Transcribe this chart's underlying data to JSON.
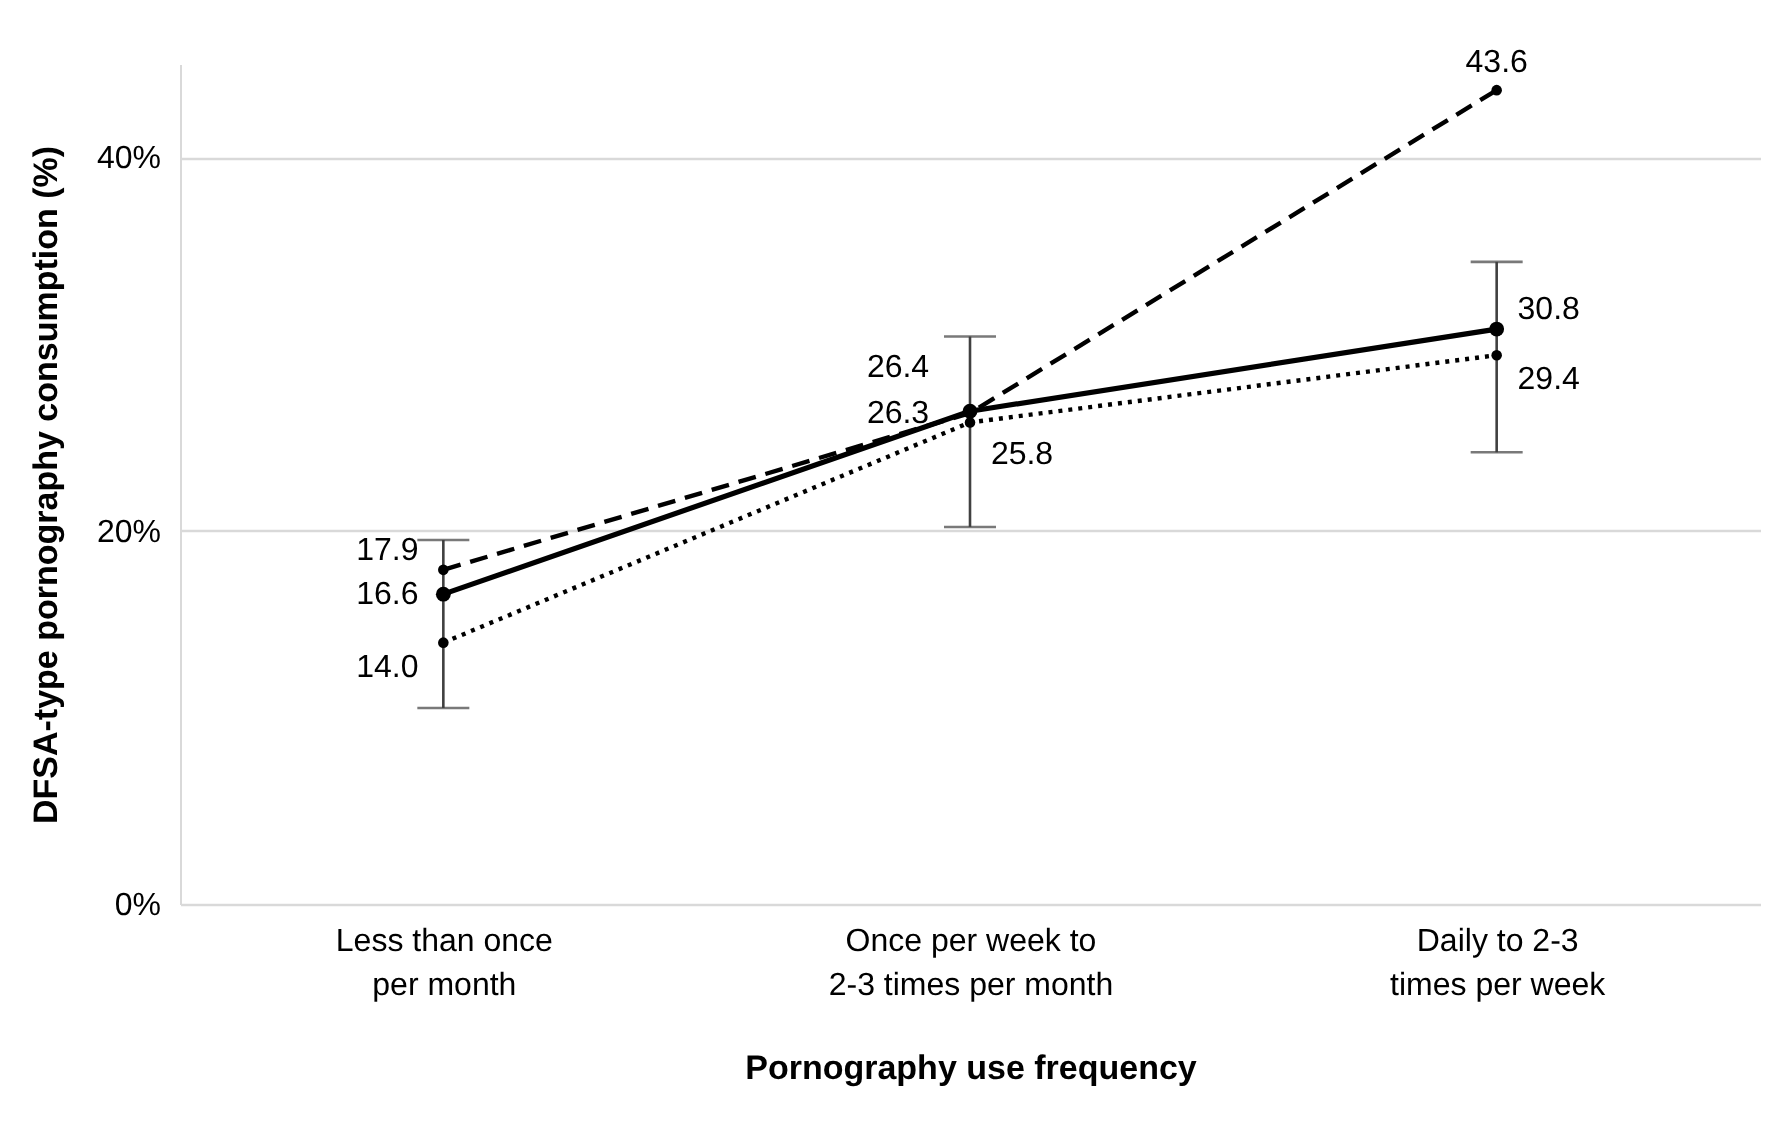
{
  "chart_data": {
    "type": "line",
    "xlabel": "Pornography use frequency",
    "ylabel": "DFSA-type pornography consumption (%)",
    "categories": [
      "Less than once per month",
      "Once per week to 2-3 times per month",
      "Daily to 2-3 times per week"
    ],
    "ylim": [
      0,
      45
    ],
    "yticks": [
      {
        "value": 0,
        "label": "0%"
      },
      {
        "value": 20,
        "label": "20%"
      },
      {
        "value": 40,
        "label": "40%"
      }
    ],
    "grid": "y",
    "marker": "circle",
    "series": [
      {
        "color": "#000000",
        "line_style": "solid",
        "values": [
          16.6,
          26.4,
          30.8
        ],
        "value_labels": [
          "16.6",
          "26.4",
          "30.8"
        ],
        "errors": [
          [
            10.5,
            19.5
          ],
          [
            20.2,
            30.4
          ],
          [
            24.2,
            34.4
          ]
        ]
      },
      {
        "color": "#000000",
        "line_style": "dashed",
        "values": [
          17.9,
          26.3,
          43.6
        ],
        "value_labels": [
          "17.9",
          "26.3",
          "43.6"
        ]
      },
      {
        "color": "#000000",
        "line_style": "dotted",
        "values": [
          14.0,
          25.8,
          29.4
        ],
        "value_labels": [
          "14.0",
          "25.8",
          "29.4"
        ]
      }
    ]
  }
}
